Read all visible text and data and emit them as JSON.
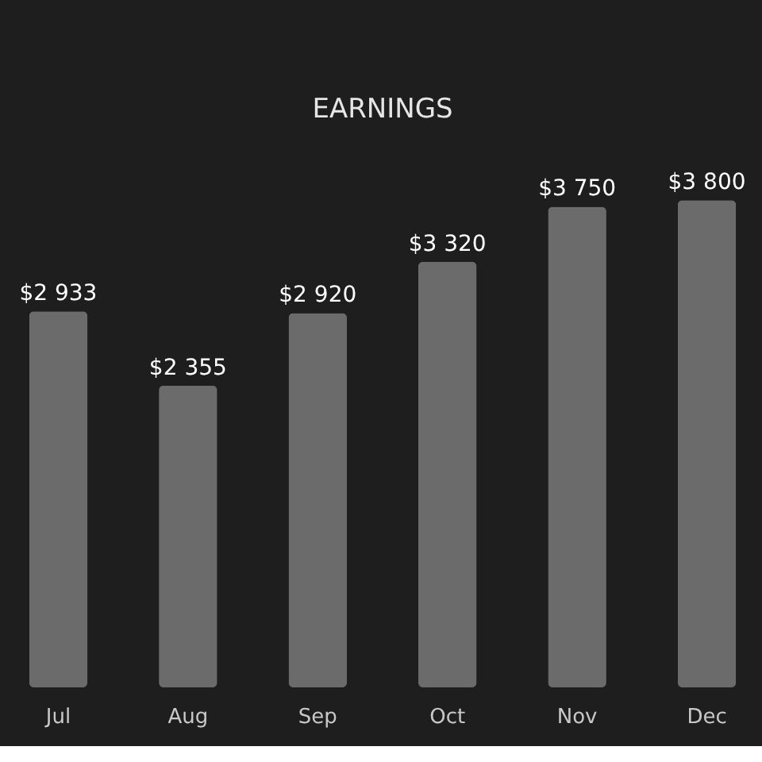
{
  "chart_data": {
    "type": "bar",
    "title": "EARNINGS",
    "categories": [
      "Jul",
      "Aug",
      "Sep",
      "Oct",
      "Nov",
      "Dec"
    ],
    "values": [
      2933,
      2355,
      2920,
      3320,
      3750,
      3800
    ],
    "value_labels": [
      "$2 933",
      "$2 355",
      "$2 920",
      "$3 320",
      "$3 750",
      "$3 800"
    ],
    "color": "#6b6b6b",
    "tick_labels": "x"
  }
}
